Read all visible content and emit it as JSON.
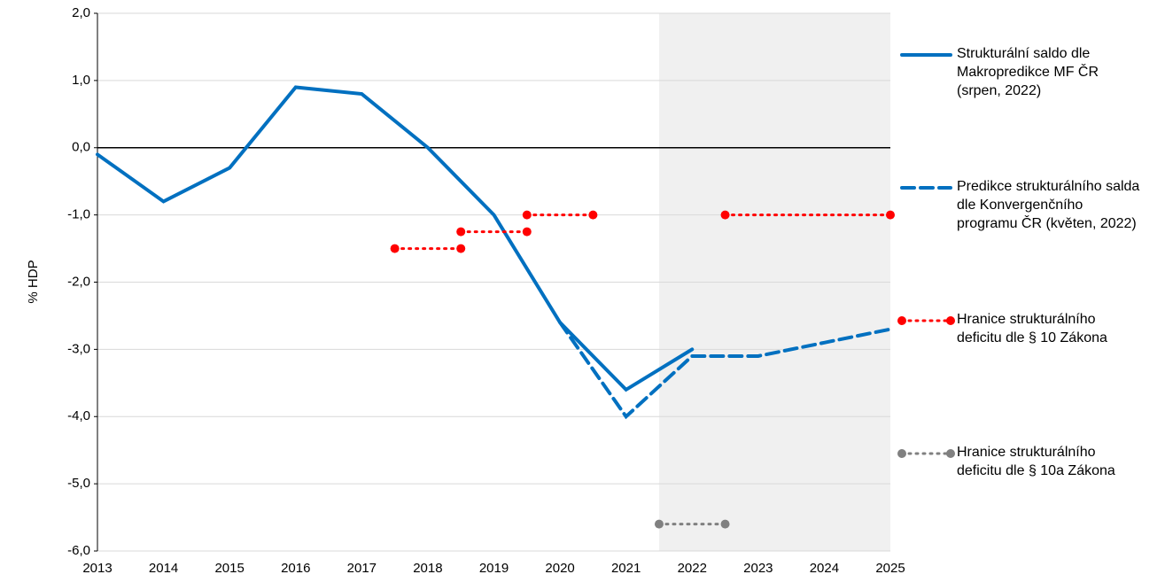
{
  "chart_data": {
    "type": "line",
    "y_label": "% HDP",
    "xlim": [
      2013,
      2025
    ],
    "xticks": [
      2013,
      2014,
      2015,
      2016,
      2017,
      2018,
      2019,
      2020,
      2021,
      2022,
      2023,
      2024,
      2025
    ],
    "ylim": [
      -6,
      2
    ],
    "yticks": [
      {
        "value": 2,
        "label": "2,0"
      },
      {
        "value": 1,
        "label": "1,0"
      },
      {
        "value": 0,
        "label": "0,0"
      },
      {
        "value": -1,
        "label": "-1,0"
      },
      {
        "value": -2,
        "label": "-2,0"
      },
      {
        "value": -3,
        "label": "-3,0"
      },
      {
        "value": -4,
        "label": "-4,0"
      },
      {
        "value": -5,
        "label": "-5,0"
      },
      {
        "value": -6,
        "label": "-6,0"
      }
    ],
    "grid": true,
    "shaded_x": [
      2021.5,
      2025
    ],
    "legend": "right",
    "series": [
      {
        "name": "Strukturální saldo dle Makropredikce MF ČR (srpen, 2022)",
        "color": "#0070c0",
        "style": "solid",
        "x": [
          2013,
          2014,
          2015,
          2016,
          2017,
          2018,
          2019,
          2020,
          2021,
          2022
        ],
        "values": [
          -0.1,
          -0.8,
          -0.3,
          0.9,
          0.8,
          0.0,
          -1.0,
          -2.6,
          -3.6,
          -3.0
        ]
      },
      {
        "name": "Predikce strukturálního salda dle Konvergenčního programu ČR (květen, 2022)",
        "color": "#0070c0",
        "style": "dashed",
        "x": [
          2020,
          2021,
          2022,
          2023,
          2024,
          2025
        ],
        "values": [
          -2.6,
          -4.0,
          -3.1,
          -3.1,
          -2.9,
          -2.7
        ]
      },
      {
        "name": "Hranice strukturálního deficitu dle § 10 Zákona",
        "color": "#ff0000",
        "style": "dotted",
        "segments": [
          {
            "x": [
              2017.5,
              2018.5
            ],
            "values": [
              -1.5,
              -1.5
            ]
          },
          {
            "x": [
              2018.5,
              2019.5
            ],
            "values": [
              -1.25,
              -1.25
            ]
          },
          {
            "x": [
              2019.5,
              2020.5
            ],
            "values": [
              -1.0,
              -1.0
            ]
          },
          {
            "x": [
              2022.5,
              2025
            ],
            "values": [
              -1.0,
              -1.0
            ]
          }
        ]
      },
      {
        "name": "Hranice strukturálního deficitu dle § 10a Zákona",
        "color": "#808080",
        "style": "dotted",
        "segments": [
          {
            "x": [
              2021.5,
              2022.5
            ],
            "values": [
              -5.6,
              -5.6
            ]
          }
        ]
      }
    ]
  }
}
